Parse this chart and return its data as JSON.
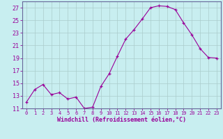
{
  "x": [
    0,
    1,
    2,
    3,
    4,
    5,
    6,
    7,
    8,
    9,
    10,
    11,
    12,
    13,
    14,
    15,
    16,
    17,
    18,
    19,
    20,
    21,
    22,
    23
  ],
  "y": [
    12.0,
    14.0,
    14.8,
    13.2,
    13.5,
    12.5,
    12.8,
    11.0,
    11.2,
    14.5,
    16.5,
    19.3,
    22.0,
    23.5,
    25.2,
    27.0,
    27.3,
    27.2,
    26.7,
    24.6,
    22.7,
    20.5,
    19.1,
    19.0
  ],
  "line_color": "#990099",
  "marker": "+",
  "bg_color": "#c8eef0",
  "xlabel": "Windchill (Refroidissement éolien,°C)",
  "ylim": [
    11,
    28
  ],
  "xlim": [
    -0.5,
    23.5
  ],
  "yticks": [
    11,
    13,
    15,
    17,
    19,
    21,
    23,
    25,
    27
  ],
  "xticks": [
    0,
    1,
    2,
    3,
    4,
    5,
    6,
    7,
    8,
    9,
    10,
    11,
    12,
    13,
    14,
    15,
    16,
    17,
    18,
    19,
    20,
    21,
    22,
    23
  ],
  "axis_color": "#990099",
  "label_color": "#990099",
  "tick_color": "#990099",
  "grid_color": "#aacccc",
  "spine_color": "#666699"
}
